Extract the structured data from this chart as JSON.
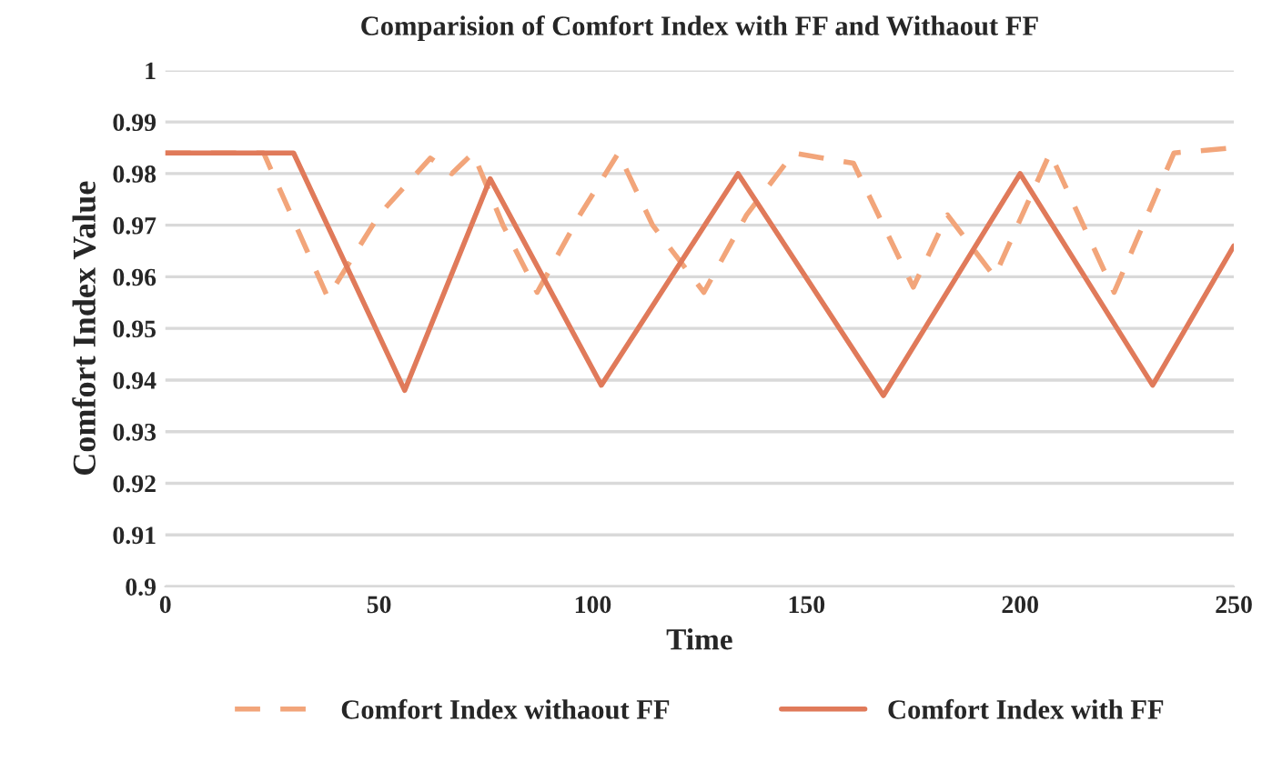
{
  "chart_data": {
    "type": "line",
    "title": "Comparision of Comfort Index with FF and Withaout FF",
    "xlabel": "Time",
    "ylabel": "Comfort Index Value",
    "xlim": [
      0,
      250
    ],
    "xticks": [
      0,
      50,
      100,
      150,
      200,
      250
    ],
    "ylim": [
      0.9,
      1
    ],
    "yticks": [
      0.9,
      0.91,
      0.92,
      0.93,
      0.94,
      0.95,
      0.96,
      0.97,
      0.98,
      0.99,
      1
    ],
    "grid": "y",
    "legend": "bottom",
    "marker": "none",
    "series": [
      {
        "name": "Comfort Index withaout FF",
        "color": "#f2a57a",
        "line_style": "dashed",
        "x": [
          0,
          23,
          38,
          50,
          62,
          67,
          72,
          79,
          87,
          97,
          106,
          114,
          126,
          136,
          147,
          161,
          175,
          183,
          194,
          207,
          222,
          236,
          250
        ],
        "values": [
          0.984,
          0.984,
          0.956,
          0.972,
          0.983,
          0.98,
          0.984,
          0.97,
          0.957,
          0.972,
          0.984,
          0.97,
          0.957,
          0.972,
          0.984,
          0.982,
          0.958,
          0.972,
          0.96,
          0.984,
          0.957,
          0.984,
          0.985
        ]
      },
      {
        "name": "Comfort Index with FF",
        "color": "#e07a5a",
        "line_style": "solid",
        "x": [
          0,
          30,
          56,
          76,
          102,
          134,
          168,
          200,
          231,
          250
        ],
        "values": [
          0.984,
          0.984,
          0.938,
          0.979,
          0.939,
          0.98,
          0.937,
          0.98,
          0.939,
          0.966
        ]
      }
    ]
  }
}
